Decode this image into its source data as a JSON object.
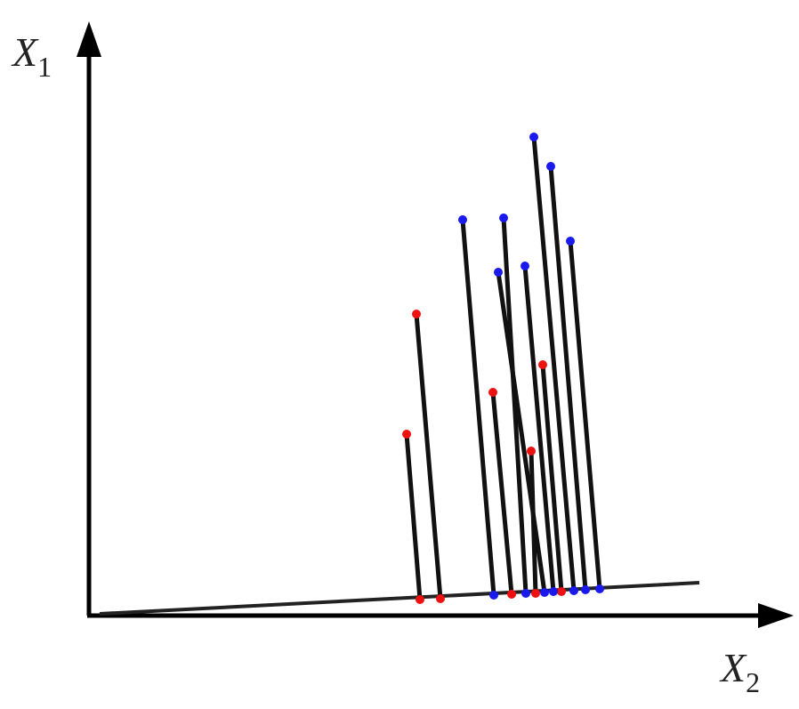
{
  "axes": {
    "y_label": {
      "main": "X",
      "sub": "1"
    },
    "x_label": {
      "main": "X",
      "sub": "2"
    }
  }
}
